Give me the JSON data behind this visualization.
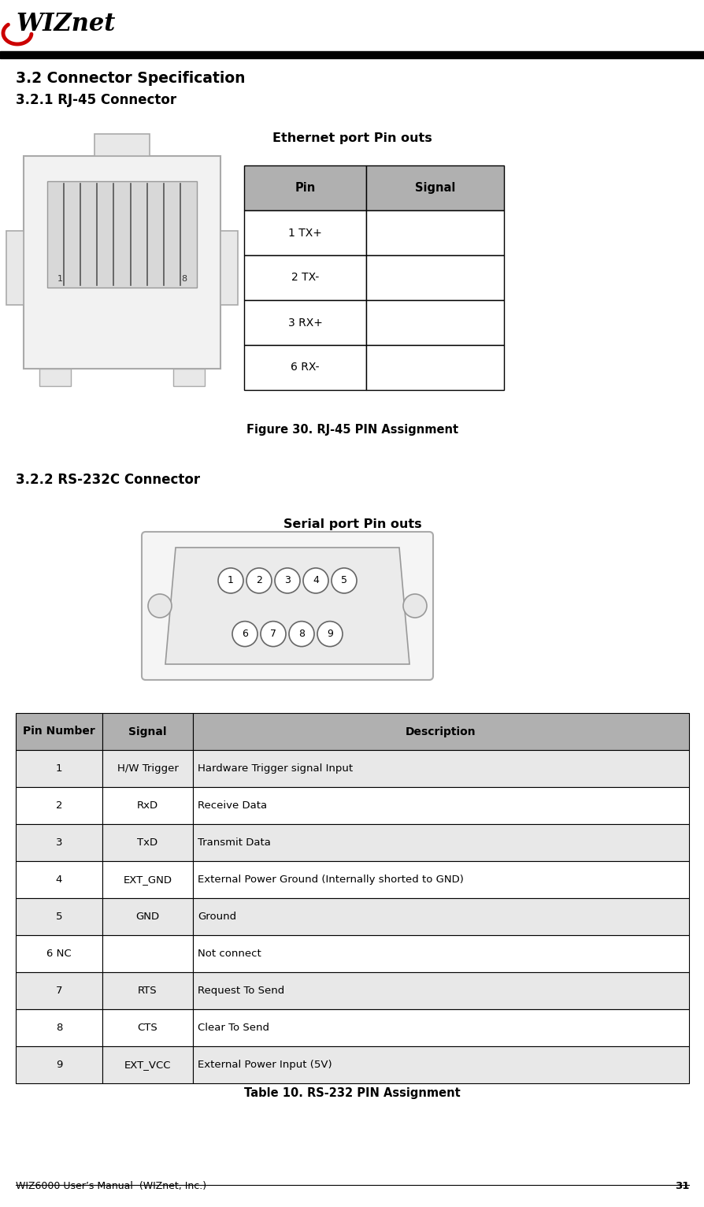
{
  "page_width": 8.95,
  "page_height": 15.32,
  "bg_color": "#ffffff",
  "section_title_1": "3.2 Connector Specification",
  "section_title_2": "3.2.1 RJ-45 Connector",
  "section_title_3": "3.2.2 RS-232C Connector",
  "ethernet_label": "Ethernet port Pin outs",
  "serial_label": "Serial port Pin outs",
  "figure_caption": "Figure 30. RJ-45 PIN Assignment",
  "table_caption": "Table 10. RS-232 PIN Assignment",
  "rj45_table_headers": [
    "Pin",
    "Signal"
  ],
  "rj45_table_rows": [
    [
      "1 TX+",
      ""
    ],
    [
      "2 TX-",
      ""
    ],
    [
      "3 RX+",
      ""
    ],
    [
      "6 RX-",
      ""
    ]
  ],
  "rs232_table_headers": [
    "Pin Number",
    "Signal",
    "Description"
  ],
  "rs232_table_rows": [
    [
      "1",
      "H/W Trigger",
      "Hardware Trigger signal Input"
    ],
    [
      "2",
      "RxD",
      "Receive Data"
    ],
    [
      "3",
      "TxD",
      "Transmit Data"
    ],
    [
      "4",
      "EXT_GND",
      "External Power Ground (Internally shorted to GND)"
    ],
    [
      "5",
      "GND",
      "Ground"
    ],
    [
      "6 NC",
      "",
      "Not connect"
    ],
    [
      "7",
      "RTS",
      "Request To Send"
    ],
    [
      "8",
      "CTS",
      "Clear To Send"
    ],
    [
      "9",
      "EXT_VCC",
      "External Power Input (5V)"
    ]
  ],
  "footer_text": "WIZ6000 User’s Manual  (WIZnet, Inc.)",
  "page_number": "31",
  "table_header_bg": "#b0b0b0",
  "table_border_color": "#000000",
  "table_row_bg_alt": "#e8e8e8",
  "table_row_bg": "#ffffff"
}
